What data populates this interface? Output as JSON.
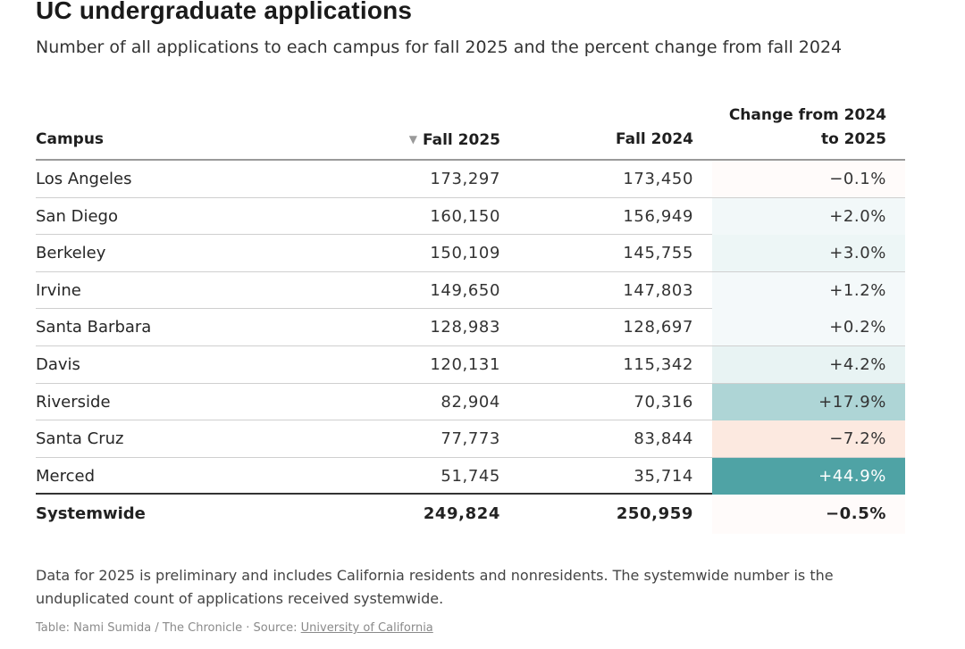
{
  "title": "UC undergraduate applications",
  "subtitle": "Number of all applications to each campus for fall 2025 and the percent change from fall 2024",
  "chart_data": {
    "type": "table",
    "columns": [
      "Campus",
      "Fall 2025",
      "Fall 2024",
      "Change from 2024 to 2025"
    ],
    "change_header": [
      "Change from 2024",
      "to 2025"
    ],
    "sort_indicator": "▼",
    "sorted_column": "Fall 2025",
    "rows": [
      {
        "campus": "Los Angeles",
        "fall_2025": "173,297",
        "fall_2024": "173,450",
        "change": "−0.1%",
        "change_value": -0.1
      },
      {
        "campus": "San Diego",
        "fall_2025": "160,150",
        "fall_2024": "156,949",
        "change": "+2.0%",
        "change_value": 2.0
      },
      {
        "campus": "Berkeley",
        "fall_2025": "150,109",
        "fall_2024": "145,755",
        "change": "+3.0%",
        "change_value": 3.0
      },
      {
        "campus": "Irvine",
        "fall_2025": "149,650",
        "fall_2024": "147,803",
        "change": "+1.2%",
        "change_value": 1.2
      },
      {
        "campus": "Santa Barbara",
        "fall_2025": "128,983",
        "fall_2024": "128,697",
        "change": "+0.2%",
        "change_value": 0.2
      },
      {
        "campus": "Davis",
        "fall_2025": "120,131",
        "fall_2024": "115,342",
        "change": "+4.2%",
        "change_value": 4.2
      },
      {
        "campus": "Riverside",
        "fall_2025": "82,904",
        "fall_2024": "70,316",
        "change": "+17.9%",
        "change_value": 17.9
      },
      {
        "campus": "Santa Cruz",
        "fall_2025": "77,773",
        "fall_2024": "83,844",
        "change": "−7.2%",
        "change_value": -7.2
      },
      {
        "campus": "Merced",
        "fall_2025": "51,745",
        "fall_2024": "35,714",
        "change": "+44.9%",
        "change_value": 44.9
      }
    ],
    "total": {
      "campus": "Systemwide",
      "fall_2025": "249,824",
      "fall_2024": "250,959",
      "change": "−0.5%",
      "change_value": -0.5
    }
  },
  "colors": {
    "positive_max": "#4fa3a5",
    "negative_max": "#f4a582",
    "neutral": "#ffffff"
  },
  "note": "Data for 2025 is preliminary and includes California residents and nonresidents. The systemwide number is the unduplicated count of applications received systemwide.",
  "credit": {
    "prefix": "Table: Nami Sumida / The Chronicle · Source: ",
    "source_link": "University of California"
  }
}
